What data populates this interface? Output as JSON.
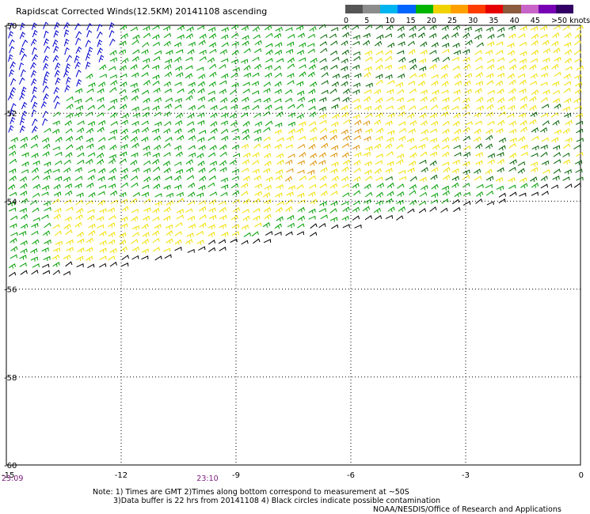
{
  "title": "Rapidscat Corrected Winds(12.5KM) 20141108 ascending",
  "colorbar": {
    "swatches": [
      {
        "color": "#555555"
      },
      {
        "color": "#8c8c8c"
      },
      {
        "color": "#00b4f0"
      },
      {
        "color": "#0064ff"
      },
      {
        "color": "#00b400"
      },
      {
        "color": "#f0d200"
      },
      {
        "color": "#ffa000"
      },
      {
        "color": "#ff3c00"
      },
      {
        "color": "#e60000"
      },
      {
        "color": "#8c5a3c"
      },
      {
        "color": "#c864c8"
      },
      {
        "color": "#7800b4"
      },
      {
        "color": "#320064"
      }
    ],
    "labels": [
      "0",
      "5",
      "10",
      "15",
      "20",
      "25",
      "30",
      "35",
      "40",
      "45",
      ">50 knots"
    ]
  },
  "map": {
    "lon_ticks": [
      "-15",
      "-12",
      "-9",
      "-6",
      "-3",
      "0"
    ],
    "lat_ticks": [
      "-50",
      "-52",
      "-54",
      "-56",
      "-58",
      "-60"
    ],
    "times": [
      "23:09",
      "23:10"
    ]
  },
  "notes": {
    "line1": "Note: 1) Times are GMT 2)Times along bottom correspond to measurement at ~50S",
    "line2": "3)Data buffer is 22 hrs from 20141108 4) Black circles indicate possible contamination",
    "credit": "NOAA/NESDIS/Office of Research and Applications"
  },
  "legend_colors": {
    "blue": "#0000cc",
    "green": "#00a000",
    "dark_green": "#006400",
    "yellow": "#f0e000",
    "orange": "#e09000",
    "black": "#000000"
  }
}
